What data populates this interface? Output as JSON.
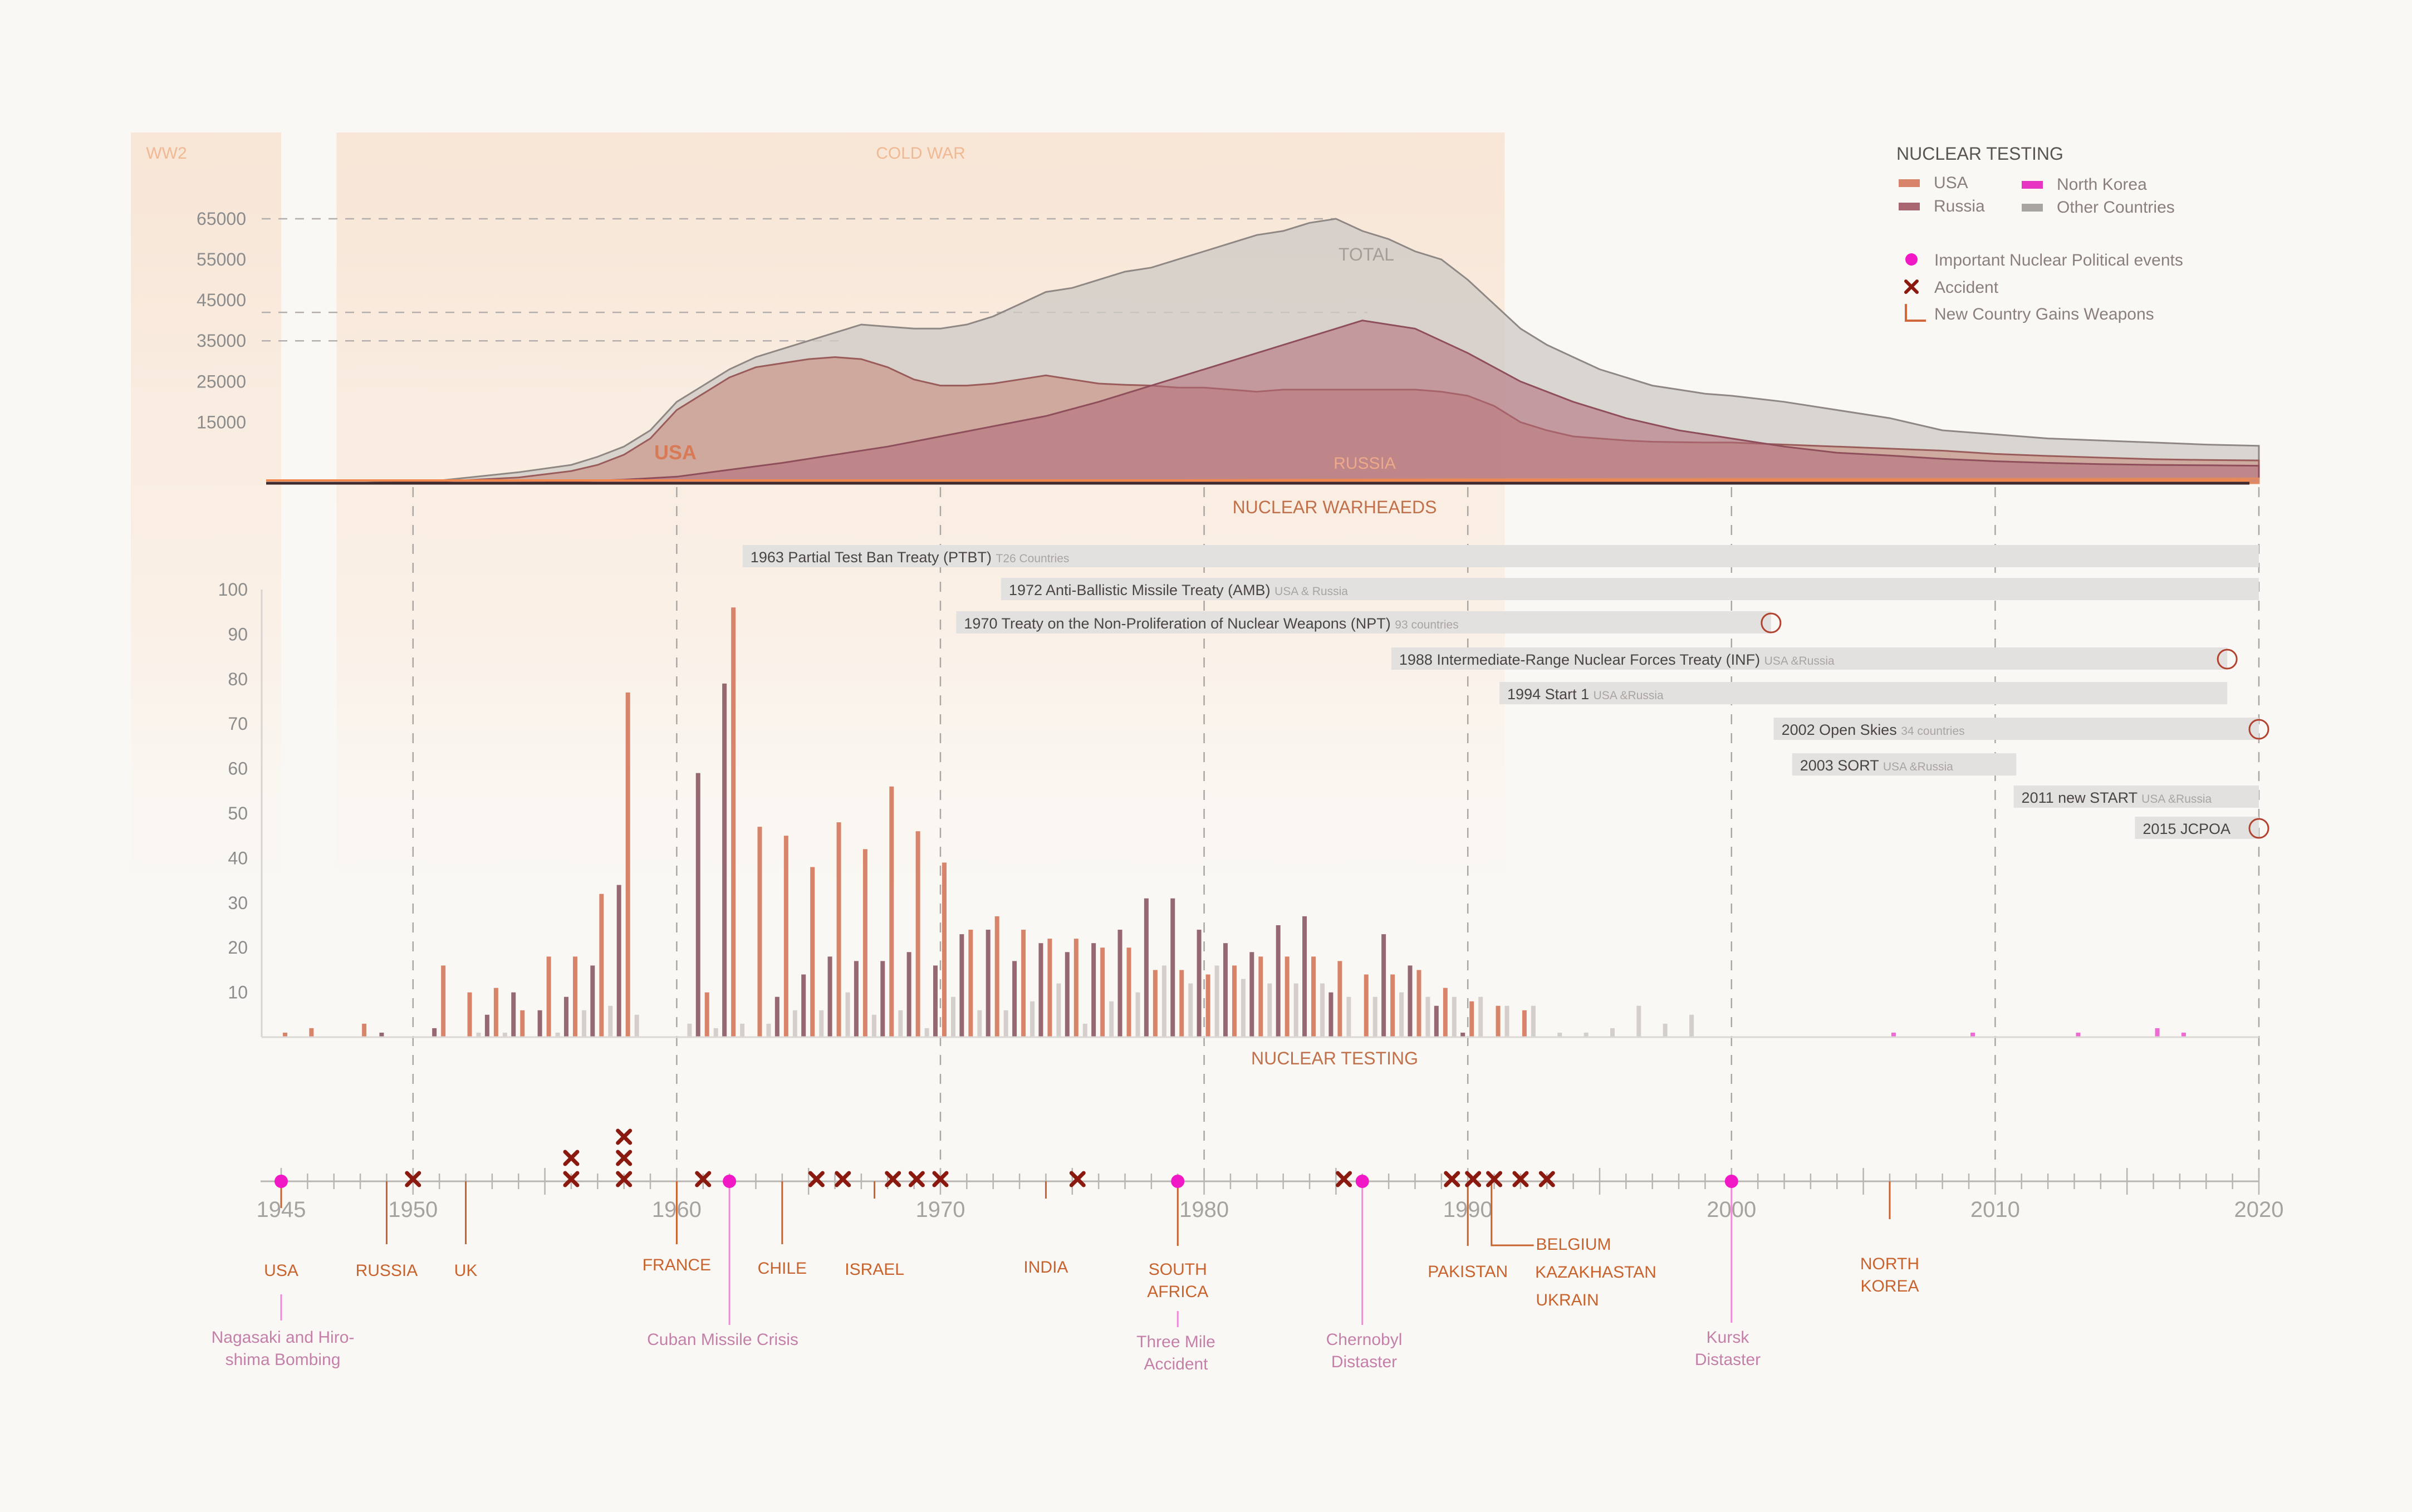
{
  "colors": {
    "background": "#faf8f4",
    "usa": "#d8846a",
    "russia": "#a86670",
    "north_korea": "#e535c2",
    "other": "#c9c3c0",
    "event": "#f118c6",
    "accident": "#8a1a10",
    "new_country": "#c8632e",
    "era": "#f7e3d3",
    "axis_text": "#8c8c8c",
    "title_text": "#c0704a",
    "treaty_bar": "#e3e1df"
  },
  "eras": [
    {
      "label": "WW2",
      "start": 1939.3,
      "end": 1945.0
    },
    {
      "label": "COLD WAR",
      "start": 1947.1,
      "end": 1991.4
    }
  ],
  "legend": {
    "title": "NUCLEAR TESTING",
    "items": [
      {
        "label": "USA",
        "color": "#d8846a",
        "kind": "swatch"
      },
      {
        "label": "North Korea",
        "color": "#e535c2",
        "kind": "swatch"
      },
      {
        "label": "Russia",
        "color": "#a86670",
        "kind": "swatch"
      },
      {
        "label": "Other Countries",
        "color": "#a8a4a2",
        "kind": "swatch"
      }
    ],
    "symbols": [
      {
        "label": "Important Nuclear Political events",
        "kind": "dot"
      },
      {
        "label": "Accident",
        "kind": "cross"
      },
      {
        "label": "New Country Gains Weapons",
        "kind": "corner"
      }
    ]
  },
  "chart_data": [
    {
      "type": "area",
      "title": "NUCLEAR WARHEAEDS",
      "ylim": [
        0,
        65000
      ],
      "yticks": [
        15000,
        25000,
        35000,
        45000,
        55000,
        65000
      ],
      "grid": false,
      "series": [
        {
          "name": "TOTAL",
          "x": [
            1945,
            1948,
            1951,
            1954,
            1956,
            1957,
            1958,
            1959,
            1960,
            1961,
            1962,
            1963,
            1964,
            1965,
            1966,
            1967,
            1968,
            1969,
            1970,
            1971,
            1972,
            1973,
            1974,
            1975,
            1976,
            1977,
            1978,
            1979,
            1980,
            1981,
            1982,
            1983,
            1984,
            1985,
            1986,
            1987,
            1988,
            1989,
            1990,
            1991,
            1992,
            1993,
            1994,
            1995,
            1996,
            1997,
            1998,
            1999,
            2000,
            2002,
            2004,
            2006,
            2008,
            2010,
            2012,
            2014,
            2016,
            2018,
            2020
          ],
          "y": [
            2,
            110,
            650,
            2700,
            4500,
            6500,
            9000,
            13000,
            20000,
            24000,
            28000,
            31000,
            33000,
            35000,
            37000,
            39000,
            38500,
            38000,
            38000,
            39000,
            41000,
            44000,
            47000,
            48000,
            50000,
            52000,
            53000,
            55000,
            57000,
            59000,
            61000,
            62000,
            64000,
            65000,
            62000,
            60000,
            57000,
            55000,
            50000,
            44000,
            38000,
            34000,
            31000,
            28000,
            26000,
            24000,
            23000,
            22000,
            21500,
            20000,
            18000,
            16000,
            13000,
            12000,
            11000,
            10500,
            10000,
            9500,
            9200
          ]
        },
        {
          "name": "USA",
          "x": [
            1945,
            1948,
            1951,
            1954,
            1956,
            1957,
            1958,
            1959,
            1960,
            1961,
            1962,
            1963,
            1964,
            1965,
            1966,
            1967,
            1968,
            1969,
            1970,
            1971,
            1972,
            1973,
            1974,
            1975,
            1976,
            1977,
            1978,
            1979,
            1980,
            1981,
            1982,
            1983,
            1984,
            1985,
            1986,
            1987,
            1988,
            1989,
            1990,
            1991,
            1992,
            1993,
            1994,
            1995,
            1996,
            1997,
            1998,
            1999,
            2000,
            2002,
            2004,
            2006,
            2008,
            2010,
            2012,
            2014,
            2016,
            2018,
            2020
          ],
          "y": [
            2,
            50,
            440,
            1400,
            3000,
            4500,
            7000,
            11000,
            18000,
            22000,
            26000,
            28500,
            29500,
            30500,
            31000,
            30500,
            28500,
            25500,
            24000,
            24000,
            24500,
            25500,
            26500,
            25500,
            24500,
            24200,
            24000,
            23500,
            23500,
            23000,
            22500,
            23000,
            23000,
            23000,
            23000,
            23000,
            23000,
            22500,
            21500,
            19000,
            15000,
            13000,
            11500,
            11000,
            10500,
            10200,
            10100,
            10000,
            10000,
            9500,
            9000,
            8500,
            8000,
            7200,
            6700,
            6300,
            5900,
            5700,
            5600
          ]
        },
        {
          "name": "RUSSIA",
          "x": [
            1945,
            1949,
            1952,
            1955,
            1958,
            1960,
            1962,
            1964,
            1966,
            1968,
            1970,
            1972,
            1974,
            1976,
            1978,
            1980,
            1982,
            1984,
            1986,
            1988,
            1990,
            1992,
            1994,
            1996,
            1998,
            2000,
            2002,
            2004,
            2006,
            2008,
            2010,
            2012,
            2014,
            2016,
            2018,
            2020
          ],
          "y": [
            0,
            1,
            50,
            200,
            870,
            1600,
            3300,
            5000,
            7000,
            9000,
            11500,
            14000,
            16500,
            20000,
            24000,
            28000,
            32000,
            36000,
            40000,
            38000,
            32000,
            25000,
            20000,
            16000,
            13000,
            11000,
            9000,
            7500,
            6800,
            6000,
            5400,
            5000,
            4700,
            4500,
            4400,
            4300
          ]
        },
        {
          "name": "Other Countries",
          "x": [
            1952,
            1960,
            1970,
            1980,
            1990,
            2000,
            2010,
            2020
          ],
          "y": [
            0,
            100,
            400,
            800,
            1000,
            1100,
            1100,
            1200
          ]
        }
      ],
      "series_labels": [
        "TOTAL",
        "USA",
        "RUSSIA"
      ]
    },
    {
      "type": "bar",
      "title": "NUCLEAR TESTING",
      "ylim": [
        0,
        100
      ],
      "yticks": [
        10,
        20,
        30,
        40,
        50,
        60,
        70,
        80,
        90,
        100
      ],
      "grid": false,
      "series": [
        {
          "name": "USA",
          "x": [
            1945,
            1946,
            1948,
            1951,
            1952,
            1953,
            1954,
            1955,
            1956,
            1957,
            1958,
            1961,
            1962,
            1963,
            1964,
            1965,
            1966,
            1967,
            1968,
            1969,
            1970,
            1971,
            1972,
            1973,
            1974,
            1975,
            1976,
            1977,
            1978,
            1979,
            1980,
            1981,
            1982,
            1983,
            1984,
            1985,
            1986,
            1987,
            1988,
            1989,
            1990,
            1991,
            1992
          ],
          "y": [
            1,
            2,
            3,
            16,
            10,
            11,
            6,
            18,
            18,
            32,
            77,
            10,
            96,
            47,
            45,
            38,
            48,
            42,
            56,
            46,
            39,
            24,
            27,
            24,
            22,
            22,
            20,
            20,
            15,
            15,
            14,
            16,
            18,
            18,
            18,
            17,
            14,
            14,
            15,
            11,
            8,
            7,
            6
          ]
        },
        {
          "name": "Russia",
          "x": [
            1949,
            1951,
            1953,
            1954,
            1955,
            1956,
            1957,
            1958,
            1961,
            1962,
            1964,
            1965,
            1966,
            1967,
            1968,
            1969,
            1970,
            1971,
            1972,
            1973,
            1974,
            1975,
            1976,
            1977,
            1978,
            1979,
            1980,
            1981,
            1982,
            1983,
            1984,
            1985,
            1986,
            1987,
            1988,
            1989,
            1990
          ],
          "y": [
            1,
            2,
            5,
            10,
            6,
            9,
            16,
            34,
            59,
            79,
            9,
            14,
            18,
            17,
            17,
            19,
            16,
            23,
            24,
            17,
            21,
            19,
            21,
            24,
            31,
            31,
            24,
            21,
            19,
            25,
            27,
            10,
            0,
            23,
            16,
            7,
            1
          ]
        },
        {
          "name": "Other Countries",
          "x": [
            1952,
            1953,
            1955,
            1956,
            1957,
            1958,
            1960,
            1961,
            1962,
            1963,
            1964,
            1965,
            1966,
            1967,
            1968,
            1969,
            1970,
            1971,
            1972,
            1973,
            1974,
            1975,
            1976,
            1977,
            1978,
            1979,
            1980,
            1981,
            1982,
            1983,
            1984,
            1985,
            1986,
            1987,
            1988,
            1989,
            1990,
            1991,
            1992,
            1993,
            1994,
            1995,
            1996,
            1997,
            1998
          ],
          "y": [
            1,
            1,
            1,
            6,
            7,
            5,
            3,
            2,
            3,
            3,
            6,
            6,
            10,
            5,
            6,
            2,
            9,
            6,
            6,
            8,
            12,
            3,
            8,
            10,
            16,
            12,
            16,
            13,
            12,
            12,
            12,
            9,
            9,
            10,
            9,
            9,
            9,
            7,
            7,
            1,
            1,
            2,
            7,
            3,
            5
          ]
        },
        {
          "name": "North Korea",
          "x": [
            2006,
            2009,
            2013,
            2016,
            2017
          ],
          "y": [
            1,
            1,
            1,
            2,
            1
          ]
        }
      ],
      "xlim": [
        1945,
        2020
      ],
      "xticks": [
        1945,
        1950,
        1960,
        1970,
        1980,
        1990,
        2000,
        2010,
        2020
      ]
    }
  ],
  "treaties": [
    {
      "label": "1963 Partial Test Ban Treaty (PTBT)",
      "note": "T26 Countries",
      "start": 1962.5,
      "end": 2020.0,
      "terminated": false
    },
    {
      "label": "1972 Anti-Ballistic Missile Treaty (AMB)",
      "note": "USA & Russia",
      "start": 1972.3,
      "end": 2020.0,
      "terminated": false
    },
    {
      "label": "1970 Treaty on the Non-Proliferation of Nuclear Weapons (NPT)",
      "note": "93 countries",
      "start": 1970.6,
      "end": 2001.5,
      "terminated": true
    },
    {
      "label": "1988 Intermediate-Range Nuclear Forces Treaty (INF)",
      "note": "USA &Russia",
      "start": 1987.1,
      "end": 2018.8,
      "terminated": true
    },
    {
      "label": "1994 Start 1",
      "note": "USA &Russia",
      "start": 1991.2,
      "end": 2018.8,
      "terminated": false
    },
    {
      "label": "2002 Open Skies",
      "note": "34 countries",
      "start": 2001.6,
      "end": 2020.0,
      "terminated": true
    },
    {
      "label": "2003 SORT",
      "note": "USA &Russia",
      "start": 2002.3,
      "end": 2010.8,
      "terminated": false
    },
    {
      "label": "2011 new START",
      "note": "USA &Russia",
      "start": 2010.7,
      "end": 2020.0,
      "terminated": false
    },
    {
      "label": "2015 JCPOA",
      "note": "",
      "start": 2015.3,
      "end": 2020.0,
      "terminated": true
    }
  ],
  "new_countries": [
    {
      "label": "USA",
      "year": 1945
    },
    {
      "label": "RUSSIA",
      "year": 1949
    },
    {
      "label": "UK",
      "year": 1952
    },
    {
      "label": "FRANCE",
      "year": 1960
    },
    {
      "label": "CHILE",
      "year": 1964
    },
    {
      "label": "ISRAEL",
      "year": 1967.5
    },
    {
      "label": "INDIA",
      "year": 1974
    },
    {
      "label": "SOUTH AFRICA",
      "year": 1979
    },
    {
      "label": "PAKISTAN",
      "year": 1990
    },
    {
      "label": "BELGIUM",
      "year": 1990.8
    },
    {
      "label": "KAZAKHASTAN",
      "year": 1990.8
    },
    {
      "label": "UKRAIN",
      "year": 1990.8
    },
    {
      "label": "NORTH KOREA",
      "year": 2006
    }
  ],
  "events": [
    {
      "label": "Nagasaki and Hiro-shima Bombing",
      "year": 1945
    },
    {
      "label": "Cuban Missile Crisis",
      "year": 1962
    },
    {
      "label": "Three Mile Accident",
      "year": 1979
    },
    {
      "label": "Chernobyl Distaster",
      "year": 1986
    },
    {
      "label": "Kursk Distaster",
      "year": 2000
    }
  ],
  "accidents": [
    {
      "year": 1950,
      "count": 1
    },
    {
      "year": 1956,
      "count": 2
    },
    {
      "year": 1958,
      "count": 3
    },
    {
      "year": 1961,
      "count": 1
    },
    {
      "year": 1965,
      "count": 1
    },
    {
      "year": 1966,
      "count": 1
    },
    {
      "year": 1968,
      "count": 1
    },
    {
      "year": 1969,
      "count": 1
    },
    {
      "year": 1970,
      "count": 1
    },
    {
      "year": 1975,
      "count": 1
    },
    {
      "year": 1985,
      "count": 1
    },
    {
      "year": 1989,
      "count": 1
    },
    {
      "year": 1990,
      "count": 1
    },
    {
      "year": 1991,
      "count": 1
    },
    {
      "year": 1992,
      "count": 1
    },
    {
      "year": 1993,
      "count": 1
    }
  ]
}
